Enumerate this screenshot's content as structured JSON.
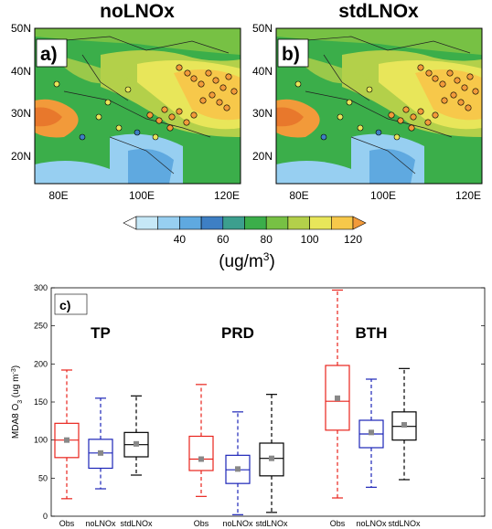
{
  "maps": {
    "panels": [
      {
        "title": "noLNOx",
        "label": "a)"
      },
      {
        "title": "stdLNOx",
        "label": "b)"
      }
    ],
    "lat_labels": [
      "50N",
      "40N",
      "30N",
      "20N"
    ],
    "lon_labels": [
      "80E",
      "100E",
      "120E"
    ],
    "colorbar": {
      "ticks": [
        "40",
        "60",
        "80",
        "100",
        "120"
      ],
      "unit_main": "(ug/m",
      "unit_sup": "3",
      "unit_close": ")",
      "colors": [
        "#ffffff",
        "#c6e8f7",
        "#97cff1",
        "#5fa9e0",
        "#3e7fc4",
        "#3c9f8e",
        "#3bae4a",
        "#77c144",
        "#b3d04a",
        "#e8e65a",
        "#f7c84a",
        "#f29a3a"
      ]
    }
  },
  "chart_data": {
    "type": "box",
    "title": "",
    "panel_label": "c)",
    "ylabel": "MDA8 O",
    "ylabel_sub": "3",
    "ylabel_unit": "(ug m",
    "ylabel_unit_sup": "-3",
    "ylabel_close": ")",
    "ylim": [
      0,
      300
    ],
    "yticks": [
      "0",
      "50",
      "100",
      "150",
      "200",
      "250",
      "300"
    ],
    "groups": [
      "TP",
      "PRD",
      "BTH"
    ],
    "categories": [
      "Obs",
      "noLNOx",
      "stdLNOx"
    ],
    "series_colors": {
      "Obs": "#e8231c",
      "noLNOx": "#1c24b8",
      "stdLNOx": "#000000"
    },
    "boxes": [
      {
        "group": "TP",
        "category": "Obs",
        "min": 23,
        "q1": 77,
        "median": 100,
        "q3": 122,
        "max": 192,
        "mean": 100
      },
      {
        "group": "TP",
        "category": "noLNOx",
        "min": 36,
        "q1": 63,
        "median": 83,
        "q3": 101,
        "max": 155,
        "mean": 83
      },
      {
        "group": "TP",
        "category": "stdLNOx",
        "min": 54,
        "q1": 78,
        "median": 94,
        "q3": 110,
        "max": 158,
        "mean": 95
      },
      {
        "group": "PRD",
        "category": "Obs",
        "min": 26,
        "q1": 60,
        "median": 75,
        "q3": 105,
        "max": 173,
        "mean": 75
      },
      {
        "group": "PRD",
        "category": "noLNOx",
        "min": 2,
        "q1": 43,
        "median": 61,
        "q3": 80,
        "max": 137,
        "mean": 62
      },
      {
        "group": "PRD",
        "category": "stdLNOx",
        "min": 5,
        "q1": 53,
        "median": 76,
        "q3": 96,
        "max": 160,
        "mean": 76
      },
      {
        "group": "BTH",
        "category": "Obs",
        "min": 24,
        "q1": 113,
        "median": 151,
        "q3": 198,
        "max": 297,
        "mean": 155
      },
      {
        "group": "BTH",
        "category": "noLNOx",
        "min": 38,
        "q1": 90,
        "median": 108,
        "q3": 126,
        "max": 180,
        "mean": 110
      },
      {
        "group": "BTH",
        "category": "stdLNOx",
        "min": 48,
        "q1": 100,
        "median": 118,
        "q3": 137,
        "max": 194,
        "mean": 120
      }
    ]
  }
}
